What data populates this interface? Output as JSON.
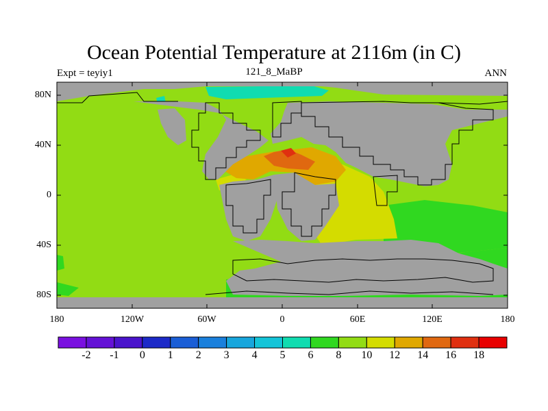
{
  "title": "Ocean Potential Temperature at 2116m (in C)",
  "subtitle_left": "Expt = teyiy1",
  "subtitle_center": "121_8_MaBP",
  "subtitle_right": "ANN",
  "y_tick_labels": [
    "80N",
    "40N",
    "0",
    "40S",
    "80S"
  ],
  "x_tick_labels": [
    "180",
    "120W",
    "60W",
    "0",
    "60E",
    "120E",
    "180"
  ],
  "colorbar": {
    "labels": [
      "-2",
      "-1",
      "0",
      "1",
      "2",
      "3",
      "4",
      "5",
      "6",
      "8",
      "10",
      "12",
      "14",
      "16",
      "18"
    ],
    "colors": [
      "#7a10e0",
      "#6412d6",
      "#4a14cc",
      "#1c2ac8",
      "#1a5ed6",
      "#1a80dc",
      "#18a6dc",
      "#14c4d8",
      "#10dcb0",
      "#30d820",
      "#92dc14",
      "#d4dc00",
      "#e0a800",
      "#e06810",
      "#e03010",
      "#e80000"
    ]
  },
  "field_colors": {
    "land": "#a0a0a0",
    "t6": "#10dcb0",
    "t8": "#30d820",
    "t10": "#92dc14",
    "t12": "#d4dc00",
    "t14": "#e0a800",
    "t16": "#e06810",
    "t18": "#e03010"
  }
}
